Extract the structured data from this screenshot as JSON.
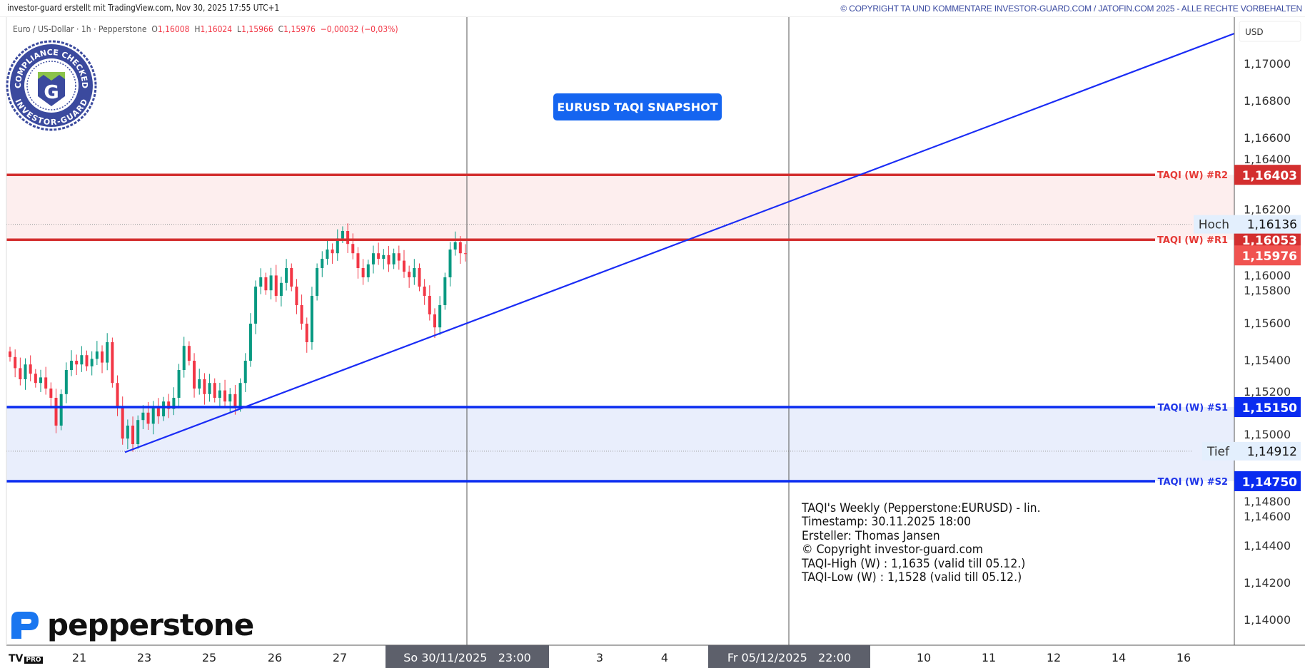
{
  "header": {
    "credit": "investor-guard erstellt mit TradingView.com, Nov 30, 2025 17:55 UTC+1",
    "copyright": "© COPYRIGHT TA UND KOMMENTARE INVESTOR-GUARD.COM / JATOFIN.COM 2025 - ALLE RECHTE VORBEHALTEN"
  },
  "legend": {
    "symbol": "Euro / US-Dollar · 1h · Pepperstone",
    "o_label": "O",
    "o": "1,16008",
    "h_label": "H",
    "h": "1,16024",
    "l_label": "L",
    "l": "1,15966",
    "c_label": "C",
    "c": "1,15976",
    "change": "−0,00032 (−0,03%)"
  },
  "badge_logo": {
    "top_text": "COMPLIANCE CHECKED",
    "bottom_text": "INVESTOR-GUARD",
    "letter": "G"
  },
  "snapshot_label": "EURUSD TAQI SNAPSHOT",
  "info_block": [
    "TAQI's Weekly (Pepperstone:EURUSD) - lin.",
    "",
    "Timestamp: 30.11.2025 18:00",
    "Ersteller: Thomas Jansen",
    "© Copyright investor-guard.com",
    "TAQI-High (W) : 1,1635 (valid till 05.12.)",
    "TAQI-Low (W) : 1,1528 (valid till 05.12.)"
  ],
  "brand": {
    "pepperstone": "pepperstone",
    "tv": "TV",
    "tv_pro": "PRO"
  },
  "colors": {
    "up": "#089981",
    "down": "#f23645",
    "resistance": "#d32f2f",
    "support": "#0a2cf0",
    "trend": "#1a2cf5"
  },
  "chart_data": {
    "type": "candlestick",
    "currency_label": "USD",
    "ylim": [
      1.1385,
      1.1735
    ],
    "yticks": [
      "1,17000",
      "1,16800",
      "1,16600",
      "1,16400",
      "1,16200",
      "1,16000",
      "1,15800",
      "1,15600",
      "1,15400",
      "1,15200",
      "1,15000",
      "1,14800",
      "1,14600",
      "1,14400",
      "1,14200",
      "1,14000"
    ],
    "ytick_values": [
      1.17,
      1.168,
      1.166,
      1.164,
      1.162,
      1.16,
      1.158,
      1.156,
      1.154,
      1.152,
      1.15,
      1.148,
      1.146,
      1.144,
      1.142,
      1.14
    ],
    "xticks": [
      "21",
      "23",
      "25",
      "26",
      "27",
      "3",
      "4",
      "10",
      "11",
      "12",
      "14",
      "16"
    ],
    "x_highlight": [
      "So 30/11/2025   23:00",
      "Fr 05/12/2025   22:00"
    ],
    "closes": [
      1.1542,
      1.1536,
      1.153,
      1.1538,
      1.1533,
      1.1528,
      1.1531,
      1.1525,
      1.152,
      1.1505,
      1.1522,
      1.1535,
      1.154,
      1.1538,
      1.1543,
      1.1537,
      1.1541,
      1.1545,
      1.1539,
      1.155,
      1.1528,
      1.1515,
      1.1498,
      1.1505,
      1.1495,
      1.1508,
      1.1512,
      1.1506,
      1.1515,
      1.151,
      1.1518,
      1.1514,
      1.152,
      1.1535,
      1.1548,
      1.154,
      1.1525,
      1.153,
      1.1522,
      1.1528,
      1.152,
      1.1524,
      1.1518,
      1.1522,
      1.1515,
      1.1528,
      1.154,
      1.156,
      1.158,
      1.1585,
      1.1578,
      1.1586,
      1.1575,
      1.1582,
      1.159,
      1.158,
      1.157,
      1.156,
      1.155,
      1.1575,
      1.159,
      1.1595,
      1.16,
      1.1598,
      1.1606,
      1.161,
      1.1603,
      1.1598,
      1.159,
      1.1585,
      1.1592,
      1.1598,
      1.1595,
      1.1597,
      1.1592,
      1.1598,
      1.1594,
      1.1588,
      1.1585,
      1.159,
      1.158,
      1.1575,
      1.1565,
      1.1558,
      1.157,
      1.1585,
      1.16,
      1.1604,
      1.1598,
      1.15976
    ],
    "levels": [
      {
        "label": "TAQI (W) #R2",
        "value": 1.16403,
        "text": "1,16403",
        "kind": "resistance"
      },
      {
        "label": "TAQI (W) #R1",
        "value": 1.16053,
        "text": "1,16053",
        "kind": "resistance"
      },
      {
        "label": "TAQI (W) #S1",
        "value": 1.1515,
        "text": "1,15150",
        "kind": "support"
      },
      {
        "label": "TAQI (W) #S2",
        "value": 1.1475,
        "text": "1,14750",
        "kind": "support"
      }
    ],
    "high": {
      "label": "Hoch",
      "value": 1.16136,
      "text": "1,16136"
    },
    "low": {
      "label": "Tief",
      "value": 1.14912,
      "text": "1,14912"
    },
    "last_price": {
      "value": 1.15976,
      "text": "1,15976"
    },
    "trendline": {
      "from": 1.1491,
      "to": 1.1717
    }
  }
}
